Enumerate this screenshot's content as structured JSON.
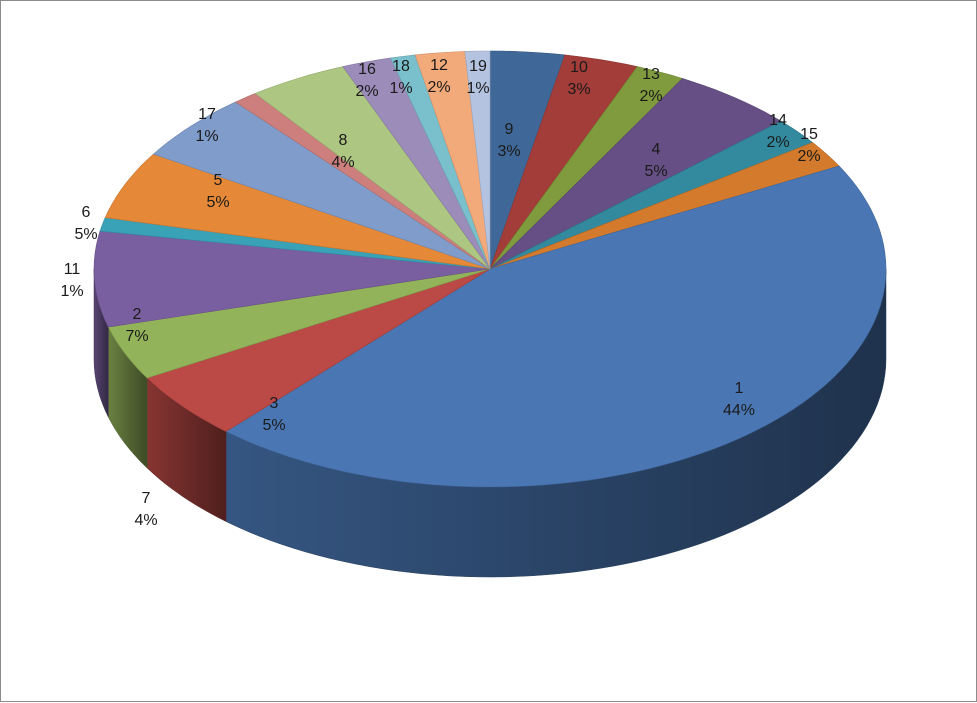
{
  "chart_data": {
    "type": "pie",
    "style": "3d-exploded-ellipse",
    "title": "",
    "legend": "none",
    "start_angle_deg": 0,
    "direction": "clockwise",
    "slices": [
      {
        "label": "9",
        "value": 3,
        "pct_label": "3%",
        "color": "#3f6797"
      },
      {
        "label": "10",
        "value": 3,
        "pct_label": "3%",
        "color": "#a33d39"
      },
      {
        "label": "13",
        "value": 2,
        "pct_label": "2%",
        "color": "#7f9b3d"
      },
      {
        "label": "4",
        "value": 5,
        "pct_label": "5%",
        "color": "#654f85"
      },
      {
        "label": "14",
        "value": 2,
        "pct_label": "2%",
        "color": "#338a9e"
      },
      {
        "label": "15",
        "value": 2,
        "pct_label": "2%",
        "color": "#d47a2c"
      },
      {
        "label": "1",
        "value": 44,
        "pct_label": "44%",
        "color": "#4a77b4"
      },
      {
        "label": "3",
        "value": 5,
        "pct_label": "5%",
        "color": "#bb4945"
      },
      {
        "label": "7",
        "value": 4,
        "pct_label": "4%",
        "color": "#93b35a"
      },
      {
        "label": "2",
        "value": 7,
        "pct_label": "7%",
        "color": "#7a5fa0"
      },
      {
        "label": "11",
        "value": 1,
        "pct_label": "1%",
        "color": "#3aa2b7"
      },
      {
        "label": "6",
        "value": 5,
        "pct_label": "5%",
        "color": "#e58938"
      },
      {
        "label": "5",
        "value": 5,
        "pct_label": "5%",
        "color": "#7f9cca"
      },
      {
        "label": "17",
        "value": 1,
        "pct_label": "1%",
        "color": "#cc7f7d"
      },
      {
        "label": "8",
        "value": 4,
        "pct_label": "4%",
        "color": "#adc681"
      },
      {
        "label": "16",
        "value": 2,
        "pct_label": "2%",
        "color": "#9c8cba"
      },
      {
        "label": "18",
        "value": 1,
        "pct_label": "1%",
        "color": "#79bfcc"
      },
      {
        "label": "12",
        "value": 2,
        "pct_label": "2%",
        "color": "#f2aa7a"
      },
      {
        "label": "19",
        "value": 1,
        "pct_label": "1%",
        "color": "#b3c3e0"
      }
    ]
  }
}
